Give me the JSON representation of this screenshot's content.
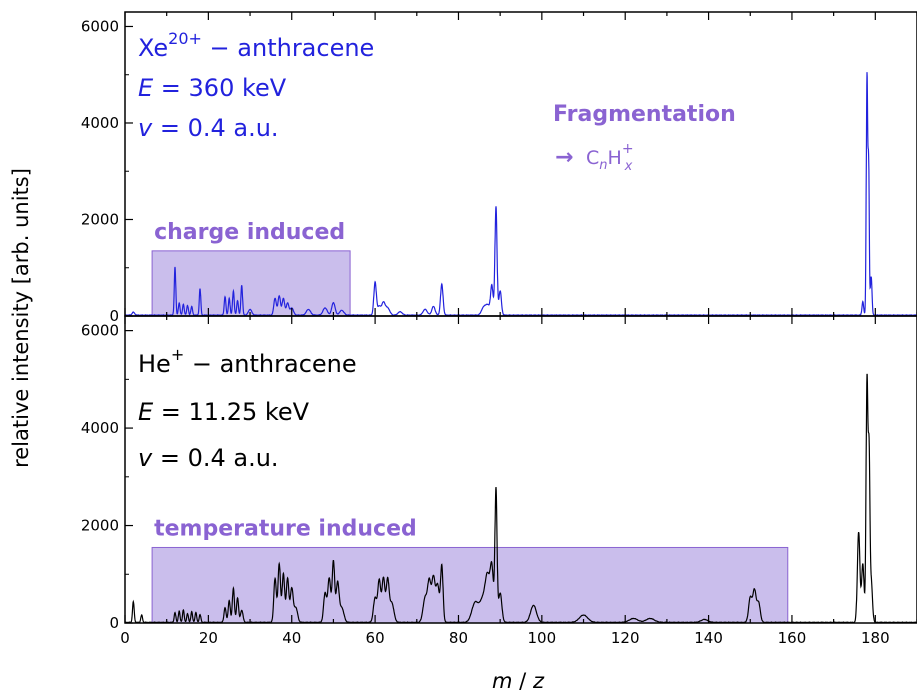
{
  "chart_data": [
    {
      "type": "line",
      "panel": "top",
      "color": "#2222dd",
      "xlim": [
        0,
        190
      ],
      "ylim": [
        0,
        6300
      ],
      "y_ticks": [
        "0",
        "2000",
        "4000",
        "6000"
      ],
      "annotations": {
        "line1_main": "Xe",
        "line1_sup": "20+",
        "line1_rest": " − anthracene",
        "line2_var": "E",
        "line2_rest": " = 360 keV",
        "line3_var": "v",
        "line3_rest": " = 0.4 a.u.",
        "fragmentation": "Fragmentation",
        "arrow": "→",
        "formula_c": "C",
        "formula_n": "n",
        "formula_h": "H",
        "formula_x": "x",
        "formula_plus": "+"
      },
      "region": {
        "label": "charge induced",
        "x_start": 6.5,
        "x_end": 54,
        "y_top": 1350,
        "color": "#b8a8e6"
      },
      "peaks": [
        {
          "x": 2,
          "h": 60,
          "w": 0.3
        },
        {
          "x": 12,
          "h": 1000,
          "w": 0.18
        },
        {
          "x": 13,
          "h": 250,
          "w": 0.2
        },
        {
          "x": 14,
          "h": 220,
          "w": 0.2
        },
        {
          "x": 15,
          "h": 200,
          "w": 0.2
        },
        {
          "x": 16,
          "h": 180,
          "w": 0.2
        },
        {
          "x": 18,
          "h": 550,
          "w": 0.18
        },
        {
          "x": 24,
          "h": 380,
          "w": 0.2
        },
        {
          "x": 25,
          "h": 350,
          "w": 0.2
        },
        {
          "x": 26,
          "h": 500,
          "w": 0.2
        },
        {
          "x": 27,
          "h": 300,
          "w": 0.2
        },
        {
          "x": 28,
          "h": 620,
          "w": 0.2
        },
        {
          "x": 30,
          "h": 120,
          "w": 0.4
        },
        {
          "x": 36,
          "h": 350,
          "w": 0.3
        },
        {
          "x": 37,
          "h": 400,
          "w": 0.3
        },
        {
          "x": 38,
          "h": 350,
          "w": 0.3
        },
        {
          "x": 39,
          "h": 250,
          "w": 0.3
        },
        {
          "x": 40,
          "h": 150,
          "w": 0.4
        },
        {
          "x": 44,
          "h": 120,
          "w": 0.5
        },
        {
          "x": 48,
          "h": 150,
          "w": 0.5
        },
        {
          "x": 50,
          "h": 260,
          "w": 0.4
        },
        {
          "x": 52,
          "h": 100,
          "w": 0.5
        },
        {
          "x": 60,
          "h": 680,
          "w": 0.3
        },
        {
          "x": 61,
          "h": 180,
          "w": 0.4
        },
        {
          "x": 62,
          "h": 250,
          "w": 0.4
        },
        {
          "x": 63,
          "h": 150,
          "w": 0.5
        },
        {
          "x": 66,
          "h": 70,
          "w": 0.5
        },
        {
          "x": 72,
          "h": 120,
          "w": 0.5
        },
        {
          "x": 74,
          "h": 180,
          "w": 0.4
        },
        {
          "x": 76,
          "h": 640,
          "w": 0.3
        },
        {
          "x": 86,
          "h": 150,
          "w": 0.5
        },
        {
          "x": 87,
          "h": 200,
          "w": 0.5
        },
        {
          "x": 88,
          "h": 600,
          "w": 0.3
        },
        {
          "x": 89,
          "h": 2250,
          "w": 0.25
        },
        {
          "x": 90,
          "h": 500,
          "w": 0.3
        },
        {
          "x": 177,
          "h": 280,
          "w": 0.2
        },
        {
          "x": 178,
          "h": 4950,
          "w": 0.17
        },
        {
          "x": 178.4,
          "h": 3000,
          "w": 0.15
        },
        {
          "x": 179,
          "h": 800,
          "w": 0.2
        }
      ],
      "baseline": 15
    },
    {
      "type": "line",
      "panel": "bottom",
      "color": "#000000",
      "xlim": [
        0,
        190
      ],
      "ylim": [
        0,
        6300
      ],
      "y_ticks": [
        "0",
        "2000",
        "4000",
        "6000"
      ],
      "x_ticks": [
        "0",
        "20",
        "40",
        "60",
        "80",
        "100",
        "120",
        "140",
        "160",
        "180"
      ],
      "xlabel_m": "m",
      "xlabel_sep": " / ",
      "xlabel_z": "z",
      "ylabel": "relative intensity [arb. units]",
      "annotations": {
        "line1_main": "He",
        "line1_sup": "+",
        "line1_rest": " − anthracene",
        "line2_var": "E",
        "line2_rest": " = 11.25 keV",
        "line3_var": "v",
        "line3_rest": " = 0.4 a.u."
      },
      "region": {
        "label": "temperature induced",
        "x_start": 6.5,
        "x_end": 159,
        "y_top": 1550,
        "color": "#b8a8e6"
      },
      "peaks": [
        {
          "x": 2,
          "h": 420,
          "w": 0.2
        },
        {
          "x": 4,
          "h": 150,
          "w": 0.2
        },
        {
          "x": 12,
          "h": 200,
          "w": 0.2
        },
        {
          "x": 13,
          "h": 230,
          "w": 0.2
        },
        {
          "x": 14,
          "h": 250,
          "w": 0.2
        },
        {
          "x": 15,
          "h": 180,
          "w": 0.2
        },
        {
          "x": 16,
          "h": 220,
          "w": 0.2
        },
        {
          "x": 17,
          "h": 200,
          "w": 0.2
        },
        {
          "x": 18,
          "h": 160,
          "w": 0.2
        },
        {
          "x": 24,
          "h": 300,
          "w": 0.25
        },
        {
          "x": 25,
          "h": 450,
          "w": 0.25
        },
        {
          "x": 26,
          "h": 700,
          "w": 0.25
        },
        {
          "x": 27,
          "h": 500,
          "w": 0.25
        },
        {
          "x": 28,
          "h": 250,
          "w": 0.3
        },
        {
          "x": 36,
          "h": 900,
          "w": 0.3
        },
        {
          "x": 37,
          "h": 1200,
          "w": 0.3
        },
        {
          "x": 38,
          "h": 1000,
          "w": 0.3
        },
        {
          "x": 39,
          "h": 900,
          "w": 0.3
        },
        {
          "x": 40,
          "h": 700,
          "w": 0.35
        },
        {
          "x": 41,
          "h": 300,
          "w": 0.4
        },
        {
          "x": 48,
          "h": 600,
          "w": 0.35
        },
        {
          "x": 49,
          "h": 900,
          "w": 0.35
        },
        {
          "x": 50,
          "h": 1250,
          "w": 0.3
        },
        {
          "x": 51,
          "h": 800,
          "w": 0.35
        },
        {
          "x": 52,
          "h": 300,
          "w": 0.5
        },
        {
          "x": 60,
          "h": 500,
          "w": 0.4
        },
        {
          "x": 61,
          "h": 850,
          "w": 0.35
        },
        {
          "x": 62,
          "h": 900,
          "w": 0.35
        },
        {
          "x": 63,
          "h": 850,
          "w": 0.35
        },
        {
          "x": 64,
          "h": 400,
          "w": 0.5
        },
        {
          "x": 72,
          "h": 500,
          "w": 0.5
        },
        {
          "x": 73,
          "h": 800,
          "w": 0.4
        },
        {
          "x": 74,
          "h": 900,
          "w": 0.4
        },
        {
          "x": 75,
          "h": 750,
          "w": 0.4
        },
        {
          "x": 76,
          "h": 1150,
          "w": 0.3
        },
        {
          "x": 84,
          "h": 400,
          "w": 0.8
        },
        {
          "x": 86,
          "h": 500,
          "w": 0.8
        },
        {
          "x": 87,
          "h": 750,
          "w": 0.5
        },
        {
          "x": 88,
          "h": 1100,
          "w": 0.4
        },
        {
          "x": 89,
          "h": 2700,
          "w": 0.25
        },
        {
          "x": 90,
          "h": 600,
          "w": 0.4
        },
        {
          "x": 98,
          "h": 350,
          "w": 0.7
        },
        {
          "x": 110,
          "h": 150,
          "w": 1.0
        },
        {
          "x": 122,
          "h": 80,
          "w": 1.0
        },
        {
          "x": 126,
          "h": 80,
          "w": 1.0
        },
        {
          "x": 139,
          "h": 60,
          "w": 0.8
        },
        {
          "x": 150,
          "h": 500,
          "w": 0.4
        },
        {
          "x": 151,
          "h": 650,
          "w": 0.4
        },
        {
          "x": 152,
          "h": 400,
          "w": 0.4
        },
        {
          "x": 176,
          "h": 1850,
          "w": 0.3
        },
        {
          "x": 177,
          "h": 1200,
          "w": 0.3
        },
        {
          "x": 178,
          "h": 4950,
          "w": 0.22
        },
        {
          "x": 178.5,
          "h": 3200,
          "w": 0.2
        },
        {
          "x": 179,
          "h": 850,
          "w": 0.3
        }
      ],
      "baseline": 10
    }
  ]
}
